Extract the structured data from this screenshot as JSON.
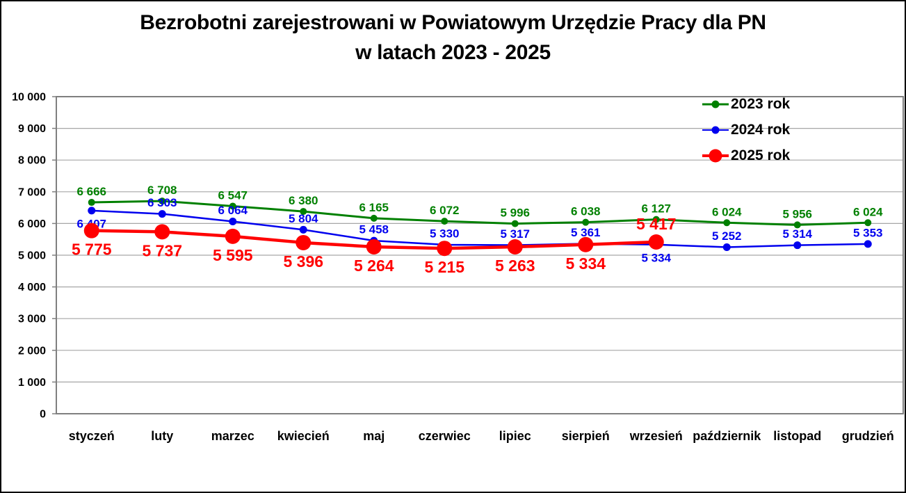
{
  "title": {
    "line1": "Bezrobotni zarejestrowani w Powiatowym Urzędzie Pracy dla PN",
    "line2": "w latach 2023 - 2025"
  },
  "chart_data": {
    "type": "line",
    "title": "Bezrobotni zarejestrowani w Powiatowym Urzędzie Pracy dla PN w latach 2023 - 2025",
    "categories": [
      "styczeń",
      "luty",
      "marzec",
      "kwiecień",
      "maj",
      "czerwiec",
      "lipiec",
      "sierpień",
      "wrzesień",
      "październik",
      "listopad",
      "grudzień"
    ],
    "y_axis": {
      "min": 0,
      "max": 10000,
      "step": 1000,
      "tick_labels": [
        "0",
        "1 000",
        "2 000",
        "3 000",
        "4 000",
        "5 000",
        "6 000",
        "7 000",
        "8 000",
        "9 000",
        "10 000"
      ]
    },
    "grid": "horizontal",
    "legend_position": "inside-top-right",
    "series": [
      {
        "name": "2023 rok",
        "color": "#008000",
        "values": [
          6666,
          6708,
          6547,
          6380,
          6165,
          6072,
          5996,
          6038,
          6127,
          6024,
          5956,
          6024
        ],
        "point_labels": [
          "6 666",
          "6 708",
          "6 547",
          "6 380",
          "6 165",
          "6 072",
          "5 996",
          "6 038",
          "6 127",
          "6 024",
          "5 956",
          "6 024"
        ],
        "label_pos": [
          "above",
          "above",
          "above",
          "above",
          "above",
          "above",
          "above",
          "above",
          "above",
          "above",
          "above",
          "above"
        ]
      },
      {
        "name": "2024 rok",
        "color": "#0000EE",
        "values": [
          6407,
          6303,
          6064,
          5804,
          5458,
          5330,
          5317,
          5361,
          5334,
          5252,
          5314,
          5353
        ],
        "point_labels": [
          "6 407",
          "6 303",
          "6 064",
          "5 804",
          "5 458",
          "5 330",
          "5 317",
          "5 361",
          "5 334",
          "5 252",
          "5 314",
          "5 353"
        ],
        "label_pos": [
          "below",
          "above",
          "above",
          "above",
          "above",
          "above",
          "above",
          "above",
          "below",
          "above",
          "above",
          "above"
        ]
      },
      {
        "name": "2025 rok",
        "color": "#FF0000",
        "values": [
          5775,
          5737,
          5595,
          5396,
          5264,
          5215,
          5263,
          5334,
          5417
        ],
        "point_labels": [
          "5 775",
          "5 737",
          "5 595",
          "5 396",
          "5 264",
          "5 215",
          "5 263",
          "5 334",
          "5 417"
        ],
        "label_pos": [
          "below",
          "below",
          "below",
          "below",
          "below",
          "below",
          "below",
          "below",
          "above"
        ]
      }
    ],
    "colors": {
      "gridline": "#A6A6A6",
      "plot_border": "#7F7F7F",
      "axis_text": "#000000"
    }
  }
}
